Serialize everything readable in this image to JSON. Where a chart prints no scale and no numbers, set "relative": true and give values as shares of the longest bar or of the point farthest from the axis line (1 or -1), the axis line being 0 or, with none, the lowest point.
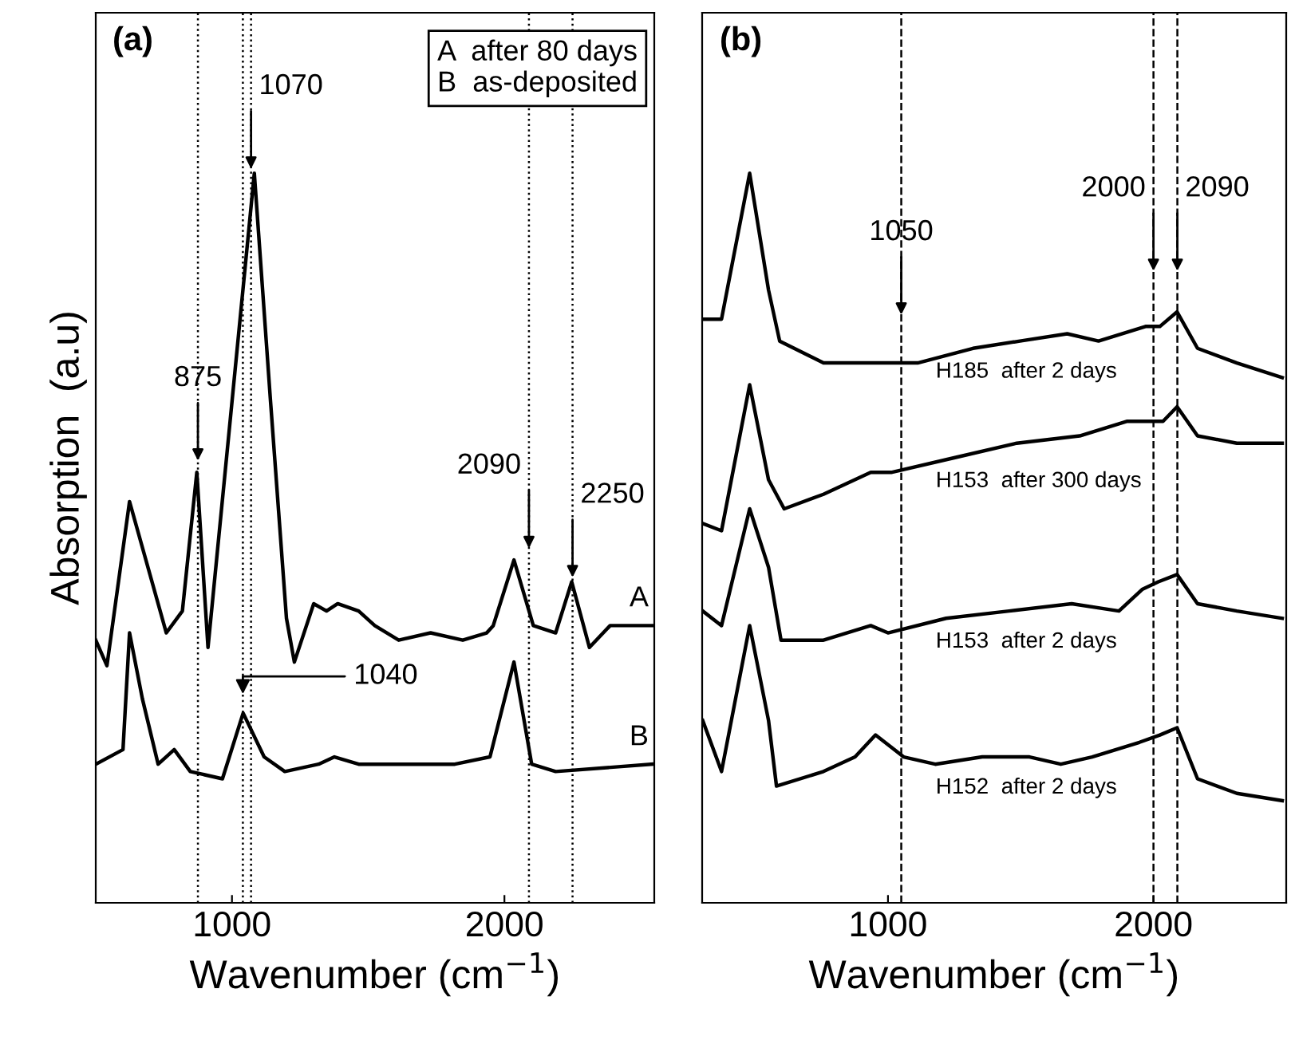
{
  "chart_data": [
    {
      "type": "line",
      "title": "(a)",
      "xlabel": "Wavenumber (cm$^{−1}$)",
      "ylabel": "Absorption  (a.u)",
      "relative": true,
      "xlim": [
        500,
        2550
      ],
      "xticks": [
        1000,
        2000
      ],
      "grid": false,
      "legend": false,
      "marker": "none",
      "line_style": "solid",
      "series": [
        {
          "name": "A",
          "color": "#000000",
          "x": [
            500,
            541,
            624,
            759,
            818,
            871,
            912,
            1082,
            1141,
            1200,
            1229,
            1300,
            1347,
            1388,
            1465,
            1524,
            1612,
            1729,
            1847,
            1935,
            1959,
            2035,
            2106,
            2188,
            2247,
            2312,
            2388,
            2541
          ],
          "values": [
            0.36,
            0.325,
            0.55,
            0.37,
            0.4,
            0.59,
            0.35,
            1.0,
            0.69,
            0.39,
            0.33,
            0.41,
            0.4,
            0.41,
            0.4,
            0.38,
            0.36,
            0.37,
            0.36,
            0.37,
            0.38,
            0.47,
            0.38,
            0.37,
            0.44,
            0.35,
            0.38,
            0.38
          ]
        },
        {
          "name": "B",
          "color": "#000000",
          "x": [
            500,
            600,
            624,
            671,
            729,
            788,
            847,
            965,
            1041,
            1118,
            1194,
            1318,
            1376,
            1465,
            1818,
            1947,
            2035,
            2100,
            2188,
            2541
          ],
          "values": [
            0.19,
            0.21,
            0.37,
            0.28,
            0.19,
            0.21,
            0.18,
            0.17,
            0.26,
            0.2,
            0.18,
            0.19,
            0.2,
            0.19,
            0.19,
            0.2,
            0.33,
            0.19,
            0.18,
            0.19
          ]
        }
      ],
      "ref_lines": [
        {
          "axis": "x",
          "value": 875,
          "line_style": "dotted"
        },
        {
          "axis": "x",
          "value": 1040,
          "line_style": "dotted"
        },
        {
          "axis": "x",
          "value": 1070,
          "line_style": "dotted"
        },
        {
          "axis": "x",
          "value": 2090,
          "line_style": "dotted"
        },
        {
          "axis": "x",
          "value": 2250,
          "line_style": "dotted"
        }
      ],
      "annotations": [
        {
          "text": "1070",
          "x": 1070,
          "y": 1.0
        },
        {
          "text": "875",
          "x": 875,
          "y": 0.6
        },
        {
          "text": "2090",
          "x": 2090,
          "y": 0.48
        },
        {
          "text": "2250",
          "x": 2250,
          "y": 0.44
        },
        {
          "text": "1040",
          "x": 1040,
          "y": 0.28
        },
        "A  after 80 days",
        "B  as-deposited"
      ]
    },
    {
      "type": "line",
      "title": "(b)",
      "xlabel": "Wavenumber (cm$^{−1}$)",
      "relative": true,
      "xlim": [
        300,
        2500
      ],
      "xticks": [
        1000,
        2000
      ],
      "grid": false,
      "legend": false,
      "marker": "none",
      "line_style": "solid",
      "series": [
        {
          "name": "H185  after 2 days",
          "color": "#000000",
          "x": [
            302,
            373,
            479,
            550,
            592,
            757,
            935,
            1112,
            1320,
            1497,
            1675,
            1793,
            1970,
            2024,
            2089,
            2166,
            2314,
            2485
          ],
          "values": [
            0.8,
            0.8,
            1.0,
            0.84,
            0.77,
            0.74,
            0.74,
            0.74,
            0.76,
            0.77,
            0.78,
            0.77,
            0.79,
            0.79,
            0.81,
            0.76,
            0.74,
            0.72
          ]
        },
        {
          "name": "H153  after 300 days",
          "color": "#000000",
          "x": [
            302,
            373,
            479,
            550,
            609,
            757,
            935,
            1012,
            1249,
            1485,
            1722,
            1899,
            1988,
            2036,
            2089,
            2166,
            2314,
            2485
          ],
          "values": [
            0.52,
            0.51,
            0.71,
            0.58,
            0.54,
            0.56,
            0.59,
            0.59,
            0.61,
            0.63,
            0.64,
            0.66,
            0.66,
            0.66,
            0.68,
            0.64,
            0.63,
            0.63
          ]
        },
        {
          "name": "H153  after 2 days",
          "color": "#000000",
          "x": [
            302,
            373,
            479,
            550,
            597,
            757,
            935,
            1000,
            1219,
            1456,
            1692,
            1870,
            1959,
            2018,
            2089,
            2166,
            2314,
            2485
          ],
          "values": [
            0.4,
            0.38,
            0.54,
            0.46,
            0.36,
            0.36,
            0.38,
            0.37,
            0.39,
            0.4,
            0.41,
            0.4,
            0.43,
            0.44,
            0.45,
            0.41,
            0.4,
            0.39
          ]
        },
        {
          "name": "H152  after 2 days",
          "color": "#000000",
          "x": [
            302,
            373,
            479,
            550,
            580,
            757,
            876,
            953,
            1059,
            1178,
            1355,
            1533,
            1651,
            1769,
            1947,
            2024,
            2089,
            2166,
            2314,
            2485
          ],
          "values": [
            0.25,
            0.18,
            0.38,
            0.25,
            0.16,
            0.18,
            0.2,
            0.23,
            0.2,
            0.19,
            0.2,
            0.2,
            0.19,
            0.2,
            0.22,
            0.23,
            0.24,
            0.17,
            0.15,
            0.14
          ]
        }
      ],
      "ref_lines": [
        {
          "axis": "x",
          "value": 1050,
          "line_style": "dashed"
        },
        {
          "axis": "x",
          "value": 2000,
          "line_style": "dashed"
        },
        {
          "axis": "x",
          "value": 2090,
          "line_style": "dashed"
        }
      ],
      "annotations": [
        {
          "text": "1050",
          "x": 1050,
          "y": 0.8
        },
        {
          "text": "2000",
          "x": 2000,
          "y": 0.86
        },
        {
          "text": "2090",
          "x": 2090,
          "y": 0.86
        }
      ]
    }
  ]
}
